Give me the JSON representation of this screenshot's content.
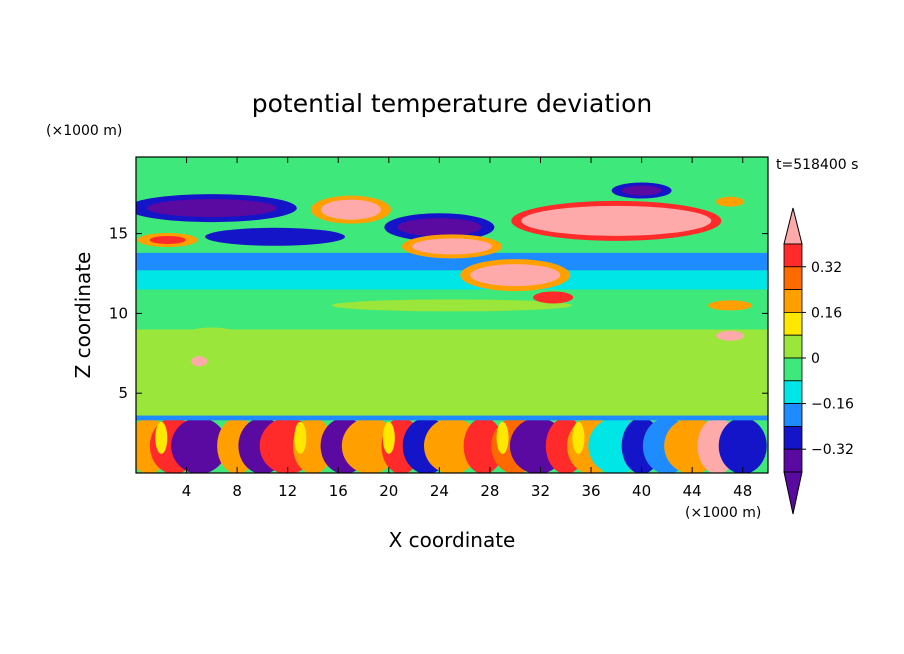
{
  "chart_data": {
    "type": "heatmap",
    "title": "potential temperature deviation",
    "time_label": "t=518400 s",
    "xlabel": "X coordinate",
    "ylabel": "Z coordinate",
    "x_unit": "(×1000 m)",
    "y_unit": "(×1000 m)",
    "xlim": [
      0,
      50
    ],
    "ylim": [
      0,
      19.8
    ],
    "x_ticks": [
      4,
      8,
      12,
      16,
      20,
      24,
      28,
      32,
      36,
      40,
      44,
      48
    ],
    "y_ticks": [
      5,
      10,
      15
    ],
    "colorbar": {
      "tick_labels": [
        "0.32",
        "0.16",
        "0",
        "−0.16",
        "−0.32"
      ],
      "tick_values": [
        0.32,
        0.16,
        0,
        -0.16,
        -0.32
      ],
      "levels": [
        -0.44,
        -0.36,
        -0.28,
        -0.2,
        -0.12,
        -0.04,
        0.04,
        0.12,
        0.2,
        0.28,
        0.36,
        0.44
      ],
      "colors": [
        "#a0f0a0",
        "#e6e6e6",
        "#ff2020",
        "#ff8000",
        "#ffb000",
        "#ffff20",
        "#80e020",
        "#20e880",
        "#20e8e8",
        "#2090ff",
        "#2020d0",
        "#6000a0",
        "#ffb0b0"
      ],
      "band_colors_top_to_bottom": [
        "#ff2a2a",
        "#ff6a00",
        "#ffa000",
        "#ffe800",
        "#9ae63a",
        "#3ee87a",
        "#00e6e6",
        "#1e8cff",
        "#1414c8",
        "#5a0aa0"
      ],
      "over_color": "#ffaaaa",
      "under_color": "#5a0aa0"
    }
  }
}
